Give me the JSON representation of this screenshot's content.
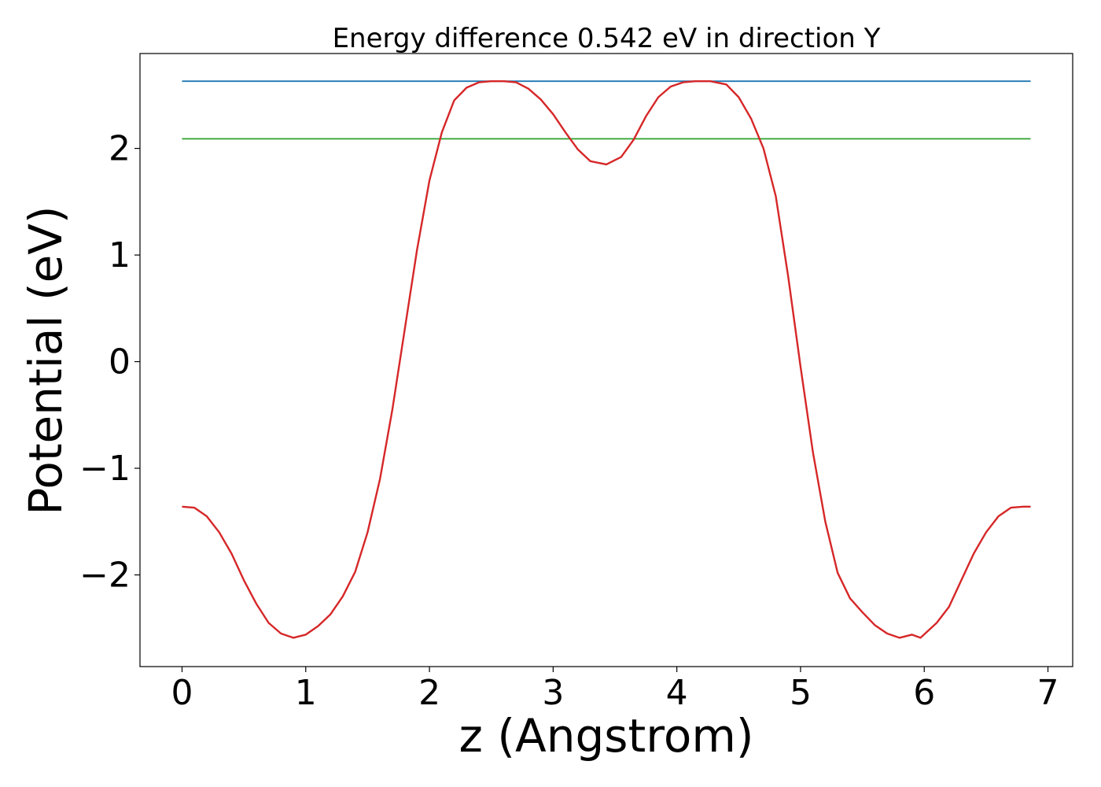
{
  "chart_data": {
    "type": "line",
    "title": "Energy difference 0.542 eV in direction Y",
    "xlabel": "z (Angstrom)",
    "ylabel": "Potential (eV)",
    "xlim": [
      -0.34,
      7.2
    ],
    "ylim": [
      -2.86,
      2.89
    ],
    "x_ticks": [
      0,
      1,
      2,
      3,
      4,
      5,
      6,
      7
    ],
    "x_tick_labels": [
      "0",
      "1",
      "2",
      "3",
      "4",
      "5",
      "6",
      "7"
    ],
    "y_ticks": [
      -2,
      -1,
      0,
      1,
      2
    ],
    "y_tick_labels": [
      "−2",
      "−1",
      "0",
      "1",
      "2"
    ],
    "grid": false,
    "series": [
      {
        "color": "#1f77b4",
        "x": [
          0,
          6.86
        ],
        "y": [
          2.63,
          2.63
        ]
      },
      {
        "color": "#2ca02c",
        "x": [
          0,
          6.86
        ],
        "y": [
          2.09,
          2.09
        ]
      },
      {
        "color": "#d62728",
        "x": [
          0,
          0.1,
          0.2,
          0.3,
          0.4,
          0.5,
          0.6,
          0.7,
          0.8,
          0.9,
          1.0,
          1.1,
          1.2,
          1.3,
          1.4,
          1.5,
          1.6,
          1.7,
          1.8,
          1.9,
          2.0,
          2.1,
          2.2,
          2.3,
          2.4,
          2.5,
          2.6,
          2.7,
          2.8,
          2.9,
          3.0,
          3.1,
          3.2,
          3.3,
          3.43,
          3.55,
          3.65,
          3.75,
          3.85,
          3.95,
          4.05,
          4.15,
          4.27,
          4.4,
          4.5,
          4.6,
          4.7,
          4.8,
          4.9,
          5.0,
          5.1,
          5.2,
          5.3,
          5.4,
          5.5,
          5.6,
          5.7,
          5.8,
          5.9,
          5.97,
          6.1,
          6.2,
          6.3,
          6.4,
          6.5,
          6.6,
          6.7,
          6.8,
          6.86
        ],
        "y": [
          -1.36,
          -1.37,
          -1.45,
          -1.6,
          -1.8,
          -2.05,
          -2.27,
          -2.45,
          -2.55,
          -2.59,
          -2.56,
          -2.48,
          -2.37,
          -2.2,
          -1.97,
          -1.6,
          -1.1,
          -0.45,
          0.3,
          1.05,
          1.7,
          2.15,
          2.45,
          2.57,
          2.62,
          2.63,
          2.63,
          2.62,
          2.56,
          2.46,
          2.32,
          2.15,
          1.99,
          1.88,
          1.85,
          1.92,
          2.08,
          2.3,
          2.48,
          2.58,
          2.62,
          2.63,
          2.63,
          2.6,
          2.48,
          2.28,
          2.0,
          1.55,
          0.8,
          -0.05,
          -0.85,
          -1.5,
          -1.98,
          -2.22,
          -2.35,
          -2.47,
          -2.55,
          -2.59,
          -2.56,
          -2.59,
          -2.45,
          -2.3,
          -2.05,
          -1.8,
          -1.6,
          -1.45,
          -1.37,
          -1.36,
          -1.36
        ]
      }
    ]
  }
}
